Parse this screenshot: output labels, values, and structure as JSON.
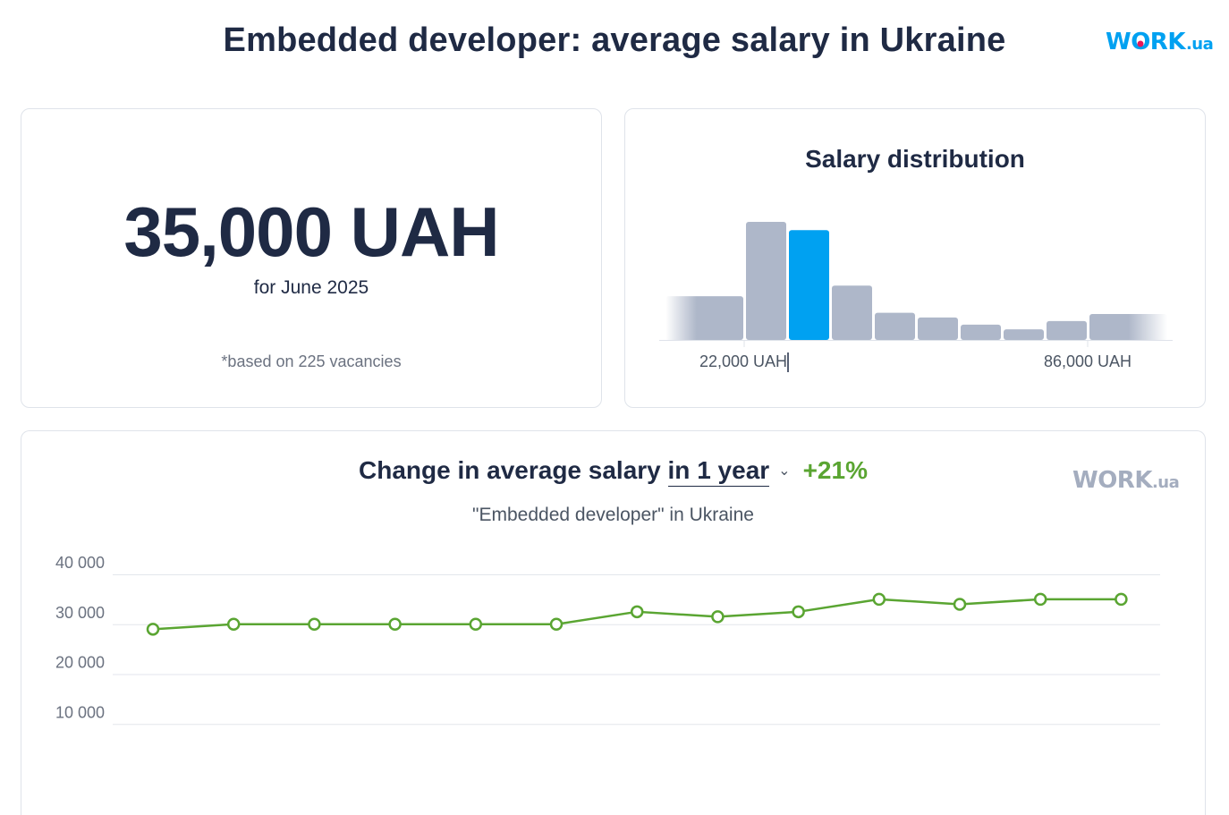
{
  "header": {
    "title": "Embedded developer: average salary in Ukraine",
    "logo_w": "W",
    "logo_o": "O",
    "logo_rk": "RK",
    "logo_ua": ".ua"
  },
  "average": {
    "value": "35,000 UAH",
    "period": "for June 2025",
    "note": "*based on 225 vacancies"
  },
  "distribution": {
    "title": "Salary distribution",
    "bars": [
      0.37,
      1.0,
      0.93,
      0.46,
      0.23,
      0.19,
      0.13,
      0.09,
      0.16,
      0.22
    ],
    "highlight_index": 2,
    "left_label": "22,000 UAH",
    "right_label": "86,000 UAH",
    "bar_color": "#aeb7c9",
    "highlight_color": "#00a1f1"
  },
  "trend": {
    "title": "Change in average salary",
    "period_selector": "in 1 year",
    "change": "+21%",
    "subtitle": "\"Embedded developer\" in Ukraine",
    "watermark_w": "W",
    "watermark_o": "O",
    "watermark_rk": "RK",
    "watermark_ua": ".ua"
  },
  "chart_data": {
    "type": "line",
    "x": [
      1,
      2,
      3,
      4,
      5,
      6,
      7,
      8,
      9,
      10,
      11,
      12,
      13
    ],
    "series": [
      {
        "values": [
          29000,
          30000,
          30000,
          30000,
          30000,
          30000,
          32500,
          31500,
          32500,
          35000,
          34000,
          35000,
          35000
        ],
        "color": "#5aa532"
      }
    ],
    "yticks": [
      "40 000",
      "30 000",
      "20 000",
      "10 000"
    ],
    "ytick_values": [
      40000,
      30000,
      20000,
      10000
    ],
    "ylim": [
      0,
      40000
    ],
    "grid": true,
    "legend": "none"
  }
}
